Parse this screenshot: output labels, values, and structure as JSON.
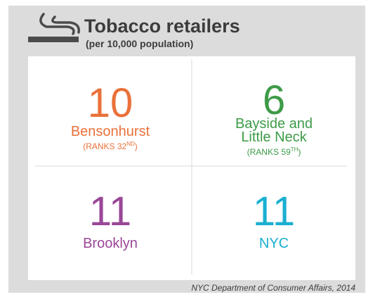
{
  "header": {
    "title": "Tobacco retailers",
    "subtitle": "(per 10,000 population)"
  },
  "cells": [
    {
      "value": "10",
      "name_lines": [
        "Bensonhurst"
      ],
      "rank": "(RANKS 32",
      "rank_sup": "ND",
      "rank_end": ")",
      "color": "#ea7139"
    },
    {
      "value": "6",
      "name_lines": [
        "Bayside and",
        "Little Neck"
      ],
      "rank": "(RANKS 59",
      "rank_sup": "TH",
      "rank_end": ")",
      "color": "#3d9b47"
    },
    {
      "value": "11",
      "name_lines": [
        "Brooklyn"
      ],
      "color": "#9a4797"
    },
    {
      "value": "11",
      "name_lines": [
        "NYC"
      ],
      "color": "#1aafd1"
    }
  ],
  "source": "NYC Department of Consumer Affairs, 2014"
}
